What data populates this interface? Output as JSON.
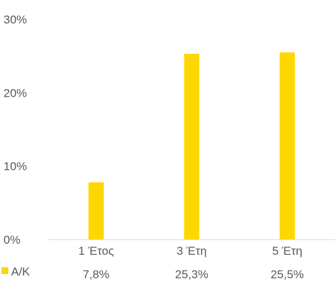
{
  "chart_data": {
    "type": "bar",
    "categories": [
      "1 Έτος",
      "3 Έτη",
      "5 Έτη"
    ],
    "series": [
      {
        "name": "Α/Κ",
        "values": [
          7.8,
          25.3,
          25.5
        ],
        "value_labels": [
          "7,8%",
          "25,3%",
          "25,5%"
        ],
        "color": "#FFD700"
      }
    ],
    "y_ticks": [
      0,
      10,
      20,
      30
    ],
    "y_tick_labels": [
      "0%",
      "10%",
      "20%",
      "30%"
    ],
    "ylim": [
      0,
      30
    ],
    "grid": false,
    "legend_placement": "bottom-left (data table)",
    "axis_color": "#D9D9D9",
    "text_color": "#595959"
  }
}
